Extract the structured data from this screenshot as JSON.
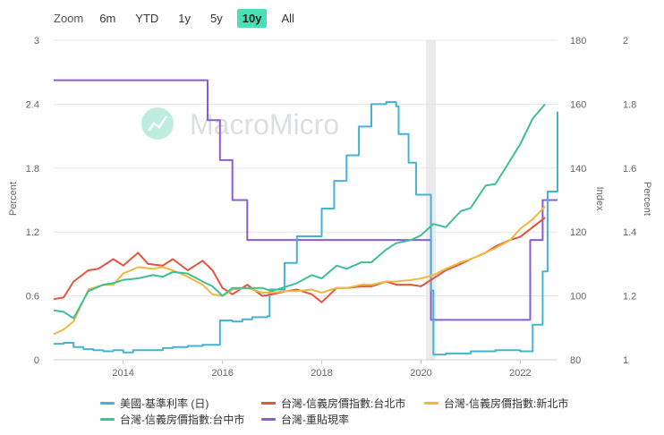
{
  "toolbar": {
    "zoom_label": "Zoom",
    "ranges": [
      "6m",
      "YTD",
      "1y",
      "5y",
      "10y",
      "All"
    ],
    "active_range": "10y"
  },
  "watermark": {
    "text": "MacroMicro"
  },
  "chart_data": {
    "type": "line",
    "x_range": [
      2012.6,
      2022.75
    ],
    "x_ticks": [
      "2014",
      "2016",
      "2018",
      "2020",
      "2022"
    ],
    "x_tick_values": [
      2014,
      2016,
      2018,
      2020,
      2022
    ],
    "recession_band": [
      2020.1,
      2020.3
    ],
    "axes": {
      "left": {
        "label": "Percent",
        "range": [
          0,
          3
        ],
        "ticks": [
          "0",
          "0.6",
          "1.2",
          "1.8",
          "2.4",
          "3"
        ]
      },
      "index": {
        "label": "Index",
        "range": [
          80,
          180
        ],
        "ticks": [
          "80",
          "100",
          "120",
          "140",
          "160",
          "180"
        ]
      },
      "right": {
        "label": "Percent",
        "range": [
          1,
          2
        ],
        "ticks": [
          "1",
          "1.2",
          "1.4",
          "1.6",
          "1.8",
          "2"
        ]
      }
    },
    "series": [
      {
        "name": "美國-基準利率 (日)",
        "axis": "left",
        "color": "#45b3d3",
        "step": true,
        "x": [
          2012.6,
          2012.8,
          2013.0,
          2013.2,
          2013.4,
          2013.6,
          2013.8,
          2014.0,
          2014.2,
          2014.4,
          2014.6,
          2014.8,
          2015.0,
          2015.3,
          2015.6,
          2015.9,
          2015.95,
          2016.2,
          2016.4,
          2016.6,
          2016.9,
          2016.95,
          2017.2,
          2017.25,
          2017.45,
          2017.5,
          2017.95,
          2018.0,
          2018.2,
          2018.25,
          2018.45,
          2018.5,
          2018.7,
          2018.75,
          2018.95,
          2019.0,
          2019.3,
          2019.5,
          2019.55,
          2019.7,
          2019.75,
          2019.85,
          2019.9,
          2020.15,
          2020.2,
          2020.25,
          2020.5,
          2021.0,
          2021.5,
          2022.0,
          2022.2,
          2022.25,
          2022.35,
          2022.45,
          2022.55,
          2022.75
        ],
        "values": [
          0.15,
          0.16,
          0.12,
          0.1,
          0.09,
          0.08,
          0.09,
          0.07,
          0.09,
          0.09,
          0.09,
          0.11,
          0.12,
          0.13,
          0.14,
          0.14,
          0.37,
          0.36,
          0.38,
          0.4,
          0.41,
          0.66,
          0.66,
          0.91,
          0.91,
          1.16,
          1.16,
          1.42,
          1.42,
          1.68,
          1.68,
          1.92,
          1.92,
          2.19,
          2.19,
          2.4,
          2.42,
          2.38,
          2.12,
          2.12,
          1.85,
          1.85,
          1.55,
          1.55,
          0.65,
          0.05,
          0.06,
          0.08,
          0.09,
          0.08,
          0.08,
          0.33,
          0.33,
          0.83,
          1.58,
          2.33
        ]
      },
      {
        "name": "台灣-信義房價指數:台北市",
        "axis": "index",
        "color": "#e4543f",
        "x": [
          2012.6,
          2012.8,
          2013.0,
          2013.3,
          2013.5,
          2013.8,
          2014.0,
          2014.3,
          2014.5,
          2014.8,
          2015.0,
          2015.3,
          2015.6,
          2015.8,
          2016.0,
          2016.2,
          2016.5,
          2016.8,
          2017.0,
          2017.3,
          2017.5,
          2017.8,
          2018.0,
          2018.3,
          2018.5,
          2018.8,
          2019.0,
          2019.3,
          2019.5,
          2019.8,
          2020.0,
          2020.25,
          2020.5,
          2020.8,
          2021.0,
          2021.3,
          2021.5,
          2021.8,
          2022.0,
          2022.25,
          2022.5
        ],
        "values": [
          99,
          99.5,
          104.5,
          108,
          108.5,
          111.5,
          109.5,
          113.5,
          110,
          109.5,
          111.5,
          108,
          111,
          108,
          102.5,
          100.5,
          103.5,
          100,
          100.5,
          101.5,
          102,
          100.5,
          98,
          102.5,
          102.5,
          103,
          103,
          104.5,
          103.5,
          103.5,
          103,
          105.5,
          108,
          110,
          111.5,
          113.5,
          115.5,
          117.5,
          118.5,
          121.5,
          124.5
        ]
      },
      {
        "name": "台灣-信義房價指數:新北市",
        "axis": "index",
        "color": "#f1b840",
        "x": [
          2012.6,
          2012.8,
          2013.0,
          2013.3,
          2013.6,
          2013.8,
          2014.0,
          2014.3,
          2014.6,
          2014.8,
          2015.0,
          2015.3,
          2015.6,
          2015.8,
          2016.0,
          2016.2,
          2016.5,
          2016.8,
          2017.0,
          2017.3,
          2017.5,
          2017.8,
          2018.0,
          2018.3,
          2018.5,
          2018.8,
          2019.0,
          2019.3,
          2019.5,
          2019.8,
          2020.0,
          2020.25,
          2020.5,
          2020.8,
          2021.0,
          2021.3,
          2021.5,
          2021.8,
          2022.0,
          2022.25,
          2022.5
        ],
        "values": [
          88,
          89.5,
          92,
          102,
          103.5,
          103.5,
          107,
          109,
          108.5,
          109,
          108,
          106,
          103.5,
          100.5,
          100,
          102,
          102.5,
          101,
          101,
          101.5,
          101.5,
          102,
          101,
          102.5,
          102.5,
          103.5,
          103.5,
          104.5,
          104.5,
          105,
          105.5,
          106.5,
          108.5,
          110.5,
          111.5,
          113.5,
          115,
          117.5,
          121,
          124,
          128
        ]
      },
      {
        "name": "台灣-信義房價指數:台中市",
        "axis": "index",
        "color": "#3dbf97",
        "x": [
          2012.6,
          2012.8,
          2013.0,
          2013.3,
          2013.6,
          2013.8,
          2014.0,
          2014.3,
          2014.6,
          2014.8,
          2015.0,
          2015.3,
          2015.6,
          2015.8,
          2016.0,
          2016.2,
          2016.5,
          2016.8,
          2017.0,
          2017.3,
          2017.5,
          2017.8,
          2018.0,
          2018.3,
          2018.5,
          2018.8,
          2019.0,
          2019.3,
          2019.5,
          2019.8,
          2020.0,
          2020.25,
          2020.5,
          2020.8,
          2021.0,
          2021.3,
          2021.5,
          2021.8,
          2022.0,
          2022.25,
          2022.5
        ],
        "values": [
          95.5,
          95,
          93,
          101.5,
          103.5,
          104,
          105,
          105.5,
          106.5,
          106,
          107.5,
          107,
          104.5,
          103,
          100,
          102.5,
          102.5,
          102.5,
          101.5,
          103,
          104,
          106.5,
          105.5,
          109.5,
          108.5,
          110.5,
          110.5,
          114.5,
          116.5,
          117.5,
          119,
          122.5,
          121.5,
          126.5,
          127.5,
          134.5,
          135,
          142.5,
          147.5,
          155.5,
          160
        ]
      },
      {
        "name": "台灣-重貼現率",
        "axis": "right",
        "color": "#8a5cd6",
        "step": true,
        "x": [
          2012.6,
          2015.7,
          2015.7,
          2015.95,
          2015.95,
          2016.2,
          2016.2,
          2016.5,
          2016.5,
          2020.2,
          2020.2,
          2022.2,
          2022.2,
          2022.45,
          2022.45,
          2022.75
        ],
        "values": [
          1.875,
          1.875,
          1.75,
          1.75,
          1.625,
          1.625,
          1.5,
          1.5,
          1.375,
          1.375,
          1.125,
          1.125,
          1.375,
          1.375,
          1.5,
          1.5
        ]
      }
    ]
  }
}
